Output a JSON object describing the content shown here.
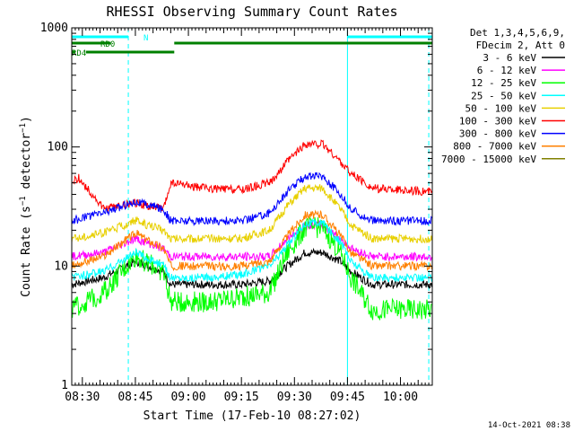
{
  "chart_data": {
    "type": "line",
    "title": "RHESSI Observing Summary Count Rates",
    "xlabel": "Start Time (17-Feb-10 08:27:02)",
    "ylabel": "Count Rate (s⁻¹ detector⁻¹)",
    "y_scale": "log",
    "ylim": [
      1,
      1000
    ],
    "xlim_minutes": [
      507,
      609
    ],
    "x_ticks": [
      "08:30",
      "08:45",
      "09:00",
      "09:15",
      "09:30",
      "09:45",
      "10:00"
    ],
    "x_tick_minutes": [
      510,
      525,
      540,
      555,
      570,
      585,
      600
    ],
    "y_ticks": [
      1,
      10,
      100,
      1000
    ],
    "y_tick_labels": [
      "1",
      "10",
      "100",
      "1000"
    ],
    "legend_header": [
      "Det 1,3,4,5,6,9,",
      "FDecim 2, Att 0"
    ],
    "legend_position": "right",
    "series": [
      {
        "name": "3 - 6 keV",
        "color": "#000000",
        "key_minutes": [
          507,
          516,
          525,
          533,
          535,
          545,
          555,
          563,
          568,
          573,
          578,
          583,
          586,
          592,
          609
        ],
        "values": [
          7,
          8,
          11,
          9,
          7,
          7,
          7,
          7.5,
          10,
          13,
          13,
          11,
          9,
          7,
          7
        ]
      },
      {
        "name": "6 - 12 keV",
        "color": "#ff00ff",
        "key_minutes": [
          507,
          516,
          525,
          533,
          535,
          545,
          555,
          563,
          568,
          573,
          578,
          583,
          586,
          592,
          609
        ],
        "values": [
          12,
          13,
          17,
          14,
          12,
          12,
          12,
          12,
          17,
          22,
          22,
          17,
          14,
          12,
          12
        ]
      },
      {
        "name": "12 - 25 keV",
        "color": "#00ff00",
        "key_minutes": [
          507,
          516,
          525,
          533,
          535,
          545,
          555,
          563,
          568,
          573,
          578,
          583,
          586,
          592,
          609
        ],
        "values": [
          4.3,
          6,
          12,
          9,
          5,
          5,
          5.5,
          6,
          13,
          21,
          21,
          13,
          8,
          4.3,
          4.3
        ]
      },
      {
        "name": "25 - 50 keV",
        "color": "#00ffff",
        "key_minutes": [
          507,
          516,
          525,
          533,
          535,
          545,
          555,
          563,
          568,
          573,
          578,
          583,
          586,
          592,
          609
        ],
        "values": [
          8,
          9,
          13,
          10,
          8,
          8,
          8.5,
          10,
          15,
          23,
          23,
          16,
          11,
          8,
          8
        ]
      },
      {
        "name": "50 - 100 keV",
        "color": "#e8d000",
        "key_minutes": [
          507,
          516,
          525,
          533,
          535,
          545,
          555,
          563,
          568,
          573,
          578,
          583,
          586,
          592,
          609
        ],
        "values": [
          17,
          19,
          24,
          20,
          17,
          17,
          17,
          20,
          32,
          45,
          45,
          30,
          22,
          17,
          17
        ]
      },
      {
        "name": "100 - 300 keV",
        "color": "#ff0000",
        "key_minutes": [
          507,
          509,
          516,
          525,
          533,
          535,
          545,
          555,
          563,
          568,
          573,
          578,
          583,
          586,
          592,
          609
        ],
        "values": [
          50,
          55,
          30,
          34,
          30,
          50,
          45,
          44,
          50,
          75,
          105,
          105,
          75,
          60,
          45,
          42
        ]
      },
      {
        "name": "300 - 800 keV",
        "color": "#0000ff",
        "key_minutes": [
          507,
          516,
          525,
          533,
          535,
          545,
          555,
          563,
          568,
          573,
          578,
          583,
          586,
          592,
          609
        ],
        "values": [
          24,
          28,
          35,
          30,
          24,
          24,
          24,
          28,
          42,
          57,
          57,
          40,
          30,
          24,
          24
        ]
      },
      {
        "name": "800 - 7000 keV",
        "color": "#ff8000",
        "key_minutes": [
          507,
          516,
          525,
          533,
          535,
          545,
          555,
          563,
          568,
          573,
          578,
          583,
          586,
          592,
          609
        ],
        "values": [
          10,
          12,
          19,
          14,
          10,
          10,
          10,
          11,
          18,
          27,
          27,
          18,
          13,
          10,
          10
        ]
      },
      {
        "name": "7000 - 15000 keV",
        "color": "#808000",
        "key_minutes": [
          507,
          516,
          525,
          533,
          535,
          545,
          555,
          563,
          568,
          573,
          578,
          583,
          586,
          592,
          609
        ],
        "values": [
          null,
          null,
          null,
          null,
          null,
          null,
          null,
          null,
          null,
          null,
          null,
          null,
          null,
          null,
          null
        ]
      }
    ],
    "flags": [
      {
        "label": "N",
        "color": "#00ffff",
        "segments_minutes": [
          [
            507,
            523
          ],
          [
            585,
            609
          ]
        ]
      },
      {
        "label": "RD0",
        "color": "#008000",
        "segments_minutes": [
          [
            507,
            518
          ],
          [
            536,
            609
          ]
        ]
      },
      {
        "label": "RD4",
        "color": "#008000",
        "segments_minutes": [
          [
            507,
            508
          ],
          [
            511,
            536
          ]
        ]
      }
    ],
    "vertical_lines_solid_minutes": [
      507,
      585
    ],
    "vertical_lines_dashed_minutes": [
      523,
      608
    ],
    "footer_timestamp": "14-Oct-2021 08:38"
  }
}
